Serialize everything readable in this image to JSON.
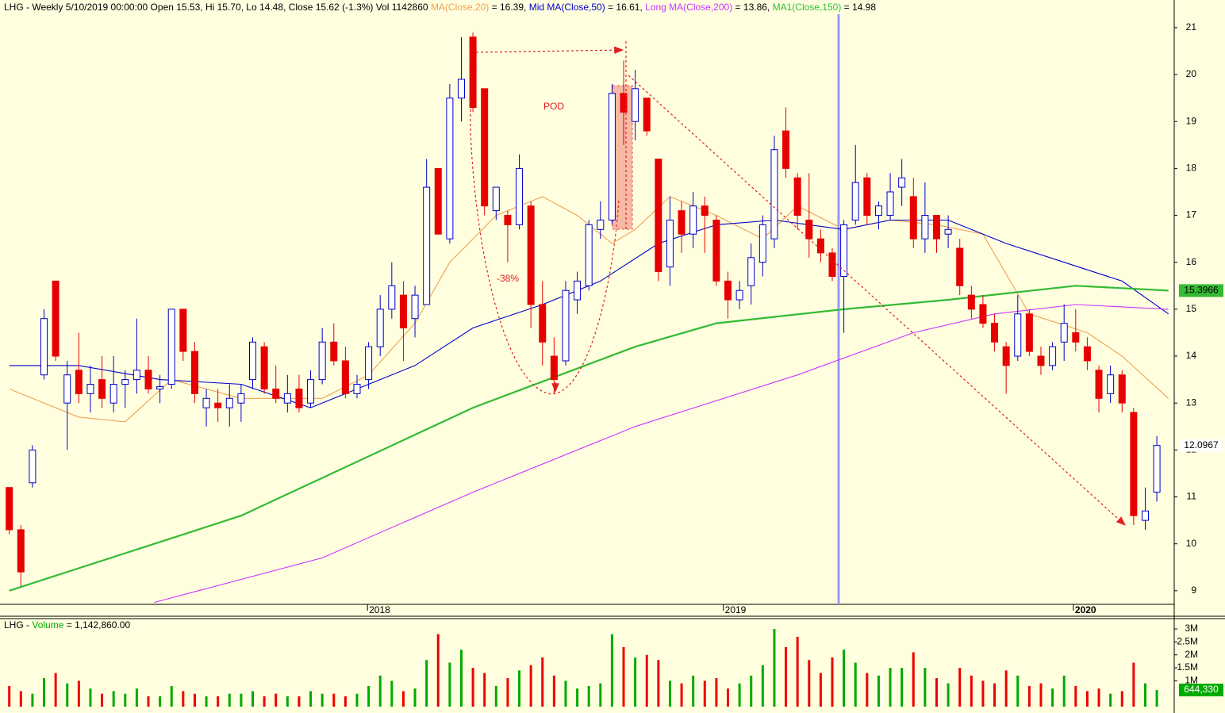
{
  "chart_data": {
    "type": "candlestick",
    "title": "LHG - Weekly 5/10/2019 00:00:00 Open 15.53, Hi 15.70, Lo 14.48, Close 15.62 (-1.3%) Vol 1142860",
    "up_color": "#0000cc",
    "down_color": "#e60000",
    "ylim": [
      8.71,
      21.59
    ],
    "yticks": [
      9,
      10,
      11,
      12,
      13,
      14,
      15,
      16,
      17,
      18,
      19,
      20,
      21
    ],
    "xlim": [
      -0.8,
      100.5
    ],
    "xticks": [
      {
        "value": 30.9,
        "label": "2018"
      },
      {
        "value": 61.6,
        "label": "2019"
      },
      {
        "value": 91.8,
        "label": "2020"
      }
    ],
    "candles": [
      [
        11.2,
        11.2,
        10.2,
        10.3
      ],
      [
        10.3,
        10.4,
        9.1,
        9.4
      ],
      [
        11.3,
        12.1,
        11.2,
        12.0
      ],
      [
        13.6,
        15.0,
        13.5,
        14.8
      ],
      [
        15.6,
        15.6,
        13.9,
        14.0
      ],
      [
        13.0,
        13.9,
        12.0,
        13.6
      ],
      [
        13.7,
        14.5,
        13.0,
        13.2
      ],
      [
        13.2,
        13.8,
        12.8,
        13.4
      ],
      [
        13.5,
        14.0,
        12.9,
        13.1
      ],
      [
        13.0,
        14.0,
        12.8,
        13.4
      ],
      [
        13.4,
        13.7,
        12.9,
        13.5
      ],
      [
        13.5,
        14.8,
        13.2,
        13.7
      ],
      [
        13.7,
        14.0,
        13.2,
        13.3
      ],
      [
        13.3,
        13.6,
        13.0,
        13.35
      ],
      [
        13.4,
        15.0,
        13.3,
        15.0
      ],
      [
        15.0,
        15.0,
        13.9,
        14.1
      ],
      [
        14.1,
        14.3,
        13.0,
        13.2
      ],
      [
        12.9,
        13.3,
        12.5,
        13.1
      ],
      [
        13.0,
        13.3,
        12.6,
        12.9
      ],
      [
        12.9,
        13.4,
        12.5,
        13.1
      ],
      [
        13.0,
        13.4,
        12.6,
        13.2
      ],
      [
        13.5,
        14.4,
        13.3,
        14.3
      ],
      [
        14.2,
        14.3,
        13.2,
        13.3
      ],
      [
        13.3,
        13.8,
        13.0,
        13.1
      ],
      [
        13.0,
        13.6,
        12.8,
        13.2
      ],
      [
        13.3,
        13.6,
        12.8,
        12.9
      ],
      [
        13.0,
        13.7,
        12.9,
        13.5
      ],
      [
        13.5,
        14.6,
        13.4,
        14.3
      ],
      [
        14.3,
        14.7,
        13.8,
        13.9
      ],
      [
        13.9,
        14.2,
        13.1,
        13.2
      ],
      [
        13.2,
        13.6,
        13.1,
        13.4
      ],
      [
        13.5,
        14.3,
        13.3,
        14.2
      ],
      [
        14.2,
        15.3,
        14.0,
        15.0
      ],
      [
        15.0,
        16.0,
        14.8,
        15.5
      ],
      [
        15.3,
        15.6,
        13.9,
        14.6
      ],
      [
        14.8,
        15.5,
        14.4,
        15.3
      ],
      [
        15.1,
        18.2,
        15.1,
        17.6
      ],
      [
        18.0,
        18.0,
        16.6,
        16.6
      ],
      [
        16.5,
        19.8,
        16.4,
        19.5
      ],
      [
        19.5,
        20.8,
        19.0,
        19.9
      ],
      [
        20.8,
        20.9,
        19.2,
        19.3
      ],
      [
        19.7,
        19.7,
        17.0,
        17.2
      ],
      [
        17.1,
        17.6,
        16.9,
        17.6
      ],
      [
        17.0,
        17.1,
        16.0,
        16.8
      ],
      [
        16.8,
        18.3,
        16.7,
        18.0
      ],
      [
        17.2,
        17.3,
        14.6,
        15.1
      ],
      [
        15.1,
        15.6,
        13.8,
        14.3
      ],
      [
        14.0,
        14.4,
        13.2,
        13.5
      ],
      [
        13.9,
        15.6,
        13.8,
        15.4
      ],
      [
        15.2,
        15.8,
        14.9,
        15.6
      ],
      [
        15.5,
        16.9,
        15.4,
        16.8
      ],
      [
        16.7,
        17.3,
        16.5,
        16.9
      ],
      [
        16.9,
        19.8,
        16.8,
        19.6
      ],
      [
        19.6,
        20.3,
        18.5,
        19.2
      ],
      [
        19.0,
        20.1,
        18.6,
        19.7
      ],
      [
        19.5,
        19.5,
        18.7,
        18.8
      ],
      [
        18.2,
        18.2,
        15.6,
        15.8
      ],
      [
        15.9,
        17.4,
        15.5,
        16.9
      ],
      [
        17.1,
        17.3,
        16.2,
        16.6
      ],
      [
        16.6,
        17.5,
        16.3,
        17.2
      ],
      [
        17.2,
        17.4,
        16.2,
        17.0
      ],
      [
        16.9,
        17.0,
        15.5,
        15.6
      ],
      [
        15.6,
        15.8,
        14.8,
        15.2
      ],
      [
        15.2,
        15.6,
        15.0,
        15.4
      ],
      [
        15.5,
        16.4,
        15.1,
        16.1
      ],
      [
        16.0,
        17.0,
        15.7,
        16.8
      ],
      [
        16.5,
        18.7,
        16.3,
        18.4
      ],
      [
        18.8,
        19.3,
        17.8,
        18.0
      ],
      [
        17.8,
        17.9,
        16.7,
        17.0
      ],
      [
        16.9,
        17.9,
        16.1,
        16.5
      ],
      [
        16.5,
        16.7,
        16.0,
        16.2
      ],
      [
        16.2,
        16.3,
        15.6,
        15.7
      ],
      [
        15.7,
        16.9,
        14.5,
        16.8
      ],
      [
        16.9,
        18.5,
        16.8,
        17.7
      ],
      [
        17.8,
        17.9,
        16.8,
        17.0
      ],
      [
        17.0,
        17.3,
        16.7,
        17.2
      ],
      [
        17.0,
        17.9,
        16.9,
        17.5
      ],
      [
        17.6,
        18.2,
        17.2,
        17.8
      ],
      [
        17.4,
        17.8,
        16.3,
        16.5
      ],
      [
        16.5,
        17.7,
        16.2,
        17.0
      ],
      [
        17.0,
        17.0,
        16.2,
        16.5
      ],
      [
        16.6,
        17.0,
        16.3,
        16.7
      ],
      [
        16.3,
        16.5,
        15.3,
        15.5
      ],
      [
        15.3,
        15.5,
        14.8,
        15.0
      ],
      [
        15.1,
        15.3,
        14.6,
        14.7
      ],
      [
        14.7,
        14.9,
        14.1,
        14.3
      ],
      [
        14.2,
        14.3,
        13.2,
        13.8
      ],
      [
        14.0,
        15.3,
        13.9,
        14.9
      ],
      [
        14.9,
        15.0,
        14.0,
        14.1
      ],
      [
        14.0,
        14.2,
        13.6,
        13.8
      ],
      [
        13.8,
        14.3,
        13.7,
        14.2
      ],
      [
        14.3,
        15.1,
        13.9,
        14.7
      ],
      [
        14.5,
        15.0,
        14.1,
        14.3
      ],
      [
        14.2,
        14.4,
        13.7,
        13.9
      ],
      [
        13.7,
        13.8,
        12.8,
        13.1
      ],
      [
        13.2,
        13.8,
        13.0,
        13.6
      ],
      [
        13.6,
        13.7,
        12.8,
        13.0
      ],
      [
        12.8,
        12.9,
        10.4,
        10.6
      ],
      [
        10.5,
        11.2,
        10.3,
        10.7
      ],
      [
        11.1,
        12.3,
        10.9,
        12.0967
      ]
    ],
    "series": [
      {
        "name": "MA(Close,20)",
        "legend_value": "= 16.39,",
        "color": "#f0a050",
        "x": [
          0,
          6,
          10,
          14,
          20,
          27,
          31,
          35,
          38,
          42,
          46,
          49,
          52,
          54,
          57,
          61,
          65,
          68,
          72,
          76,
          80,
          84,
          88,
          93,
          96,
          100
        ],
        "values": [
          13.3,
          12.7,
          12.6,
          13.5,
          13.1,
          13.1,
          13.6,
          14.7,
          16.0,
          17.0,
          17.4,
          17.0,
          16.4,
          16.7,
          17.4,
          17.0,
          16.5,
          17.2,
          16.7,
          16.9,
          16.8,
          16.6,
          14.9,
          14.5,
          14.0,
          13.1
        ]
      },
      {
        "name": "Mid MA(Close,50)",
        "legend_value": "= 16.61,",
        "color": "#0000cc",
        "x": [
          0,
          6,
          13,
          20,
          26,
          31,
          35,
          40,
          46,
          51,
          56,
          61,
          66,
          72,
          76,
          81,
          86,
          91,
          96,
          100
        ],
        "values": [
          13.8,
          13.8,
          13.5,
          13.4,
          12.9,
          13.4,
          13.8,
          14.6,
          15.1,
          15.6,
          16.4,
          16.8,
          16.9,
          16.7,
          16.9,
          16.9,
          16.4,
          16.0,
          15.6,
          14.9
        ]
      },
      {
        "name": "Long MA(Close,200)",
        "legend_value": "= 13.86,",
        "color": "#cc33ff",
        "x": [
          12.5,
          27,
          40,
          54,
          68,
          78,
          85,
          92,
          100
        ],
        "values": [
          8.75,
          9.7,
          11.1,
          12.5,
          13.6,
          14.5,
          14.9,
          15.1,
          15.0
        ]
      },
      {
        "name": "MA1(Close,150)",
        "legend_value": "= 14.98",
        "color": "#33bb33",
        "x": [
          0,
          20,
          40,
          54,
          61,
          72,
          81,
          92,
          100
        ],
        "values": [
          9.0,
          10.6,
          12.9,
          14.2,
          14.7,
          15.0,
          15.2,
          15.5,
          15.3966
        ]
      }
    ],
    "price_labels": [
      {
        "value": 15.3966,
        "color": "#33bb33"
      },
      {
        "value": 12.0967,
        "color": "#ffffff"
      }
    ],
    "annotations": [
      "POD",
      "-38%"
    ],
    "volume": {
      "title_prefix": "LHG -",
      "name": "Volume",
      "title_value": "= 1,142,860.00",
      "up_color": "#00aa00",
      "down_color": "#ee0000",
      "ylim": [
        0,
        3400000
      ],
      "yticks": [
        {
          "value": 1000000,
          "label": "1M"
        },
        {
          "value": 1500000,
          "label": "1.5M"
        },
        {
          "value": 2000000,
          "label": "2M"
        },
        {
          "value": 2500000,
          "label": "2.5M"
        },
        {
          "value": 3000000,
          "label": "3M"
        }
      ],
      "last": {
        "value": 644330,
        "label": "644,330"
      },
      "values": [
        800000,
        600000,
        500000,
        1100000,
        1300000,
        900000,
        1000000,
        700000,
        500000,
        600000,
        500000,
        700000,
        400000,
        400000,
        800000,
        600000,
        500000,
        400000,
        400000,
        500000,
        500000,
        600000,
        400000,
        500000,
        400000,
        400000,
        600000,
        500000,
        500000,
        400000,
        500000,
        800000,
        1200000,
        1000000,
        600000,
        700000,
        1800000,
        2800000,
        1700000,
        2200000,
        1500000,
        1300000,
        800000,
        1100000,
        1400000,
        1600000,
        1900000,
        1200000,
        1000000,
        700000,
        800000,
        900000,
        2800000,
        2300000,
        1900000,
        2000000,
        1800000,
        1000000,
        900000,
        1200000,
        1000000,
        1100000,
        700000,
        900000,
        1200000,
        1600000,
        3000000,
        2300000,
        2700000,
        1800000,
        1300000,
        1900000,
        2200000,
        1700000,
        1300000,
        1200000,
        1500000,
        1500000,
        2100000,
        1500000,
        1100000,
        900000,
        1500000,
        1200000,
        1000000,
        900000,
        1400000,
        1200000,
        800000,
        900000,
        700000,
        1200000,
        800000,
        600000,
        700000,
        500000,
        600000,
        1700000,
        900000,
        644330
      ]
    }
  }
}
